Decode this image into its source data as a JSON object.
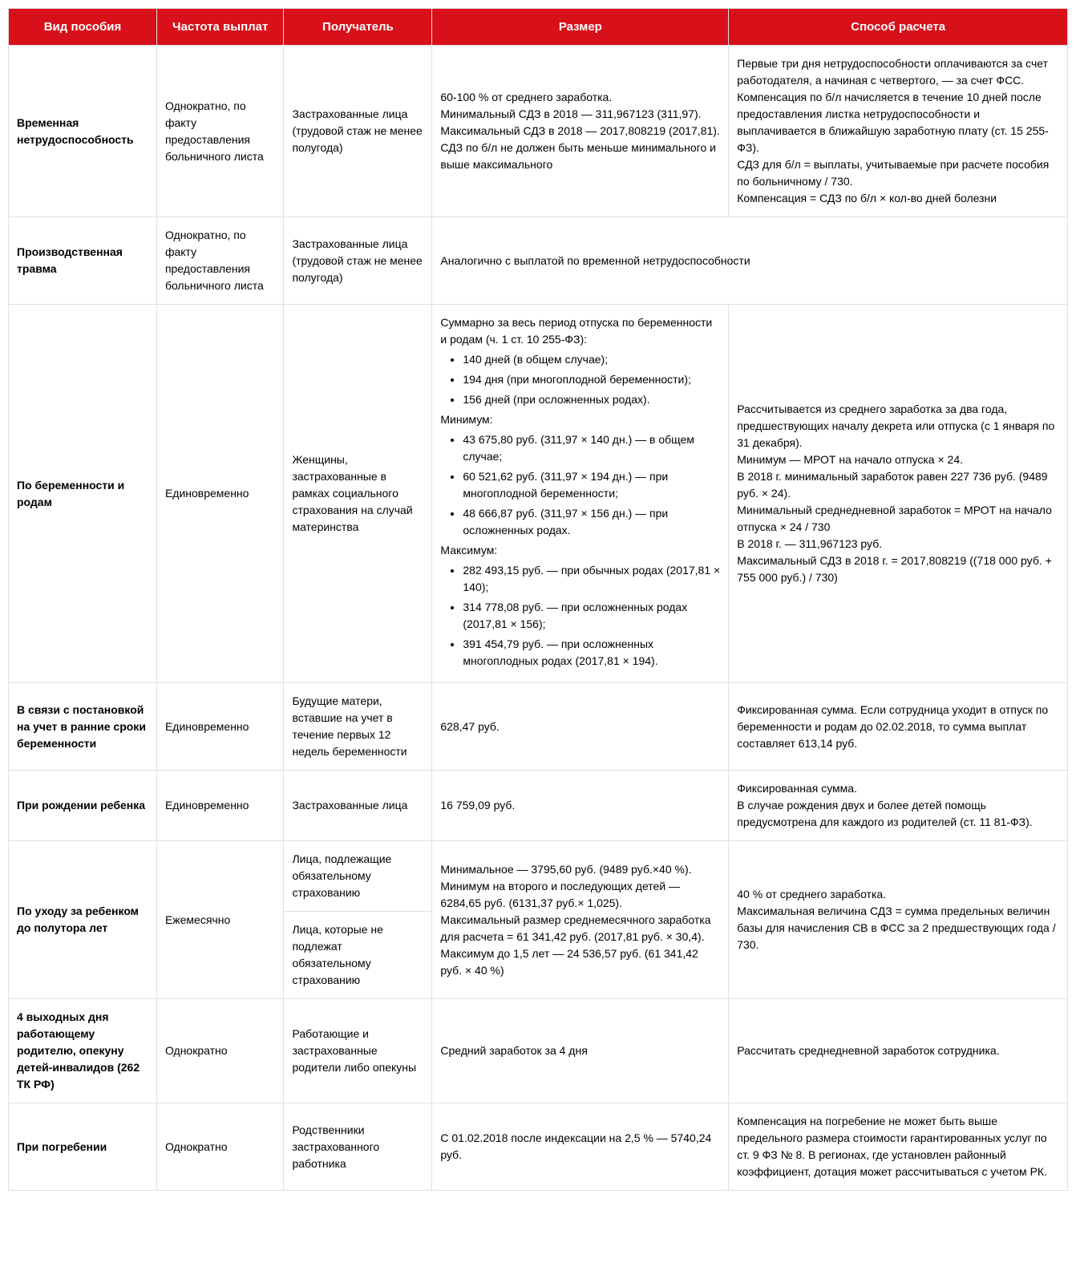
{
  "headers": [
    "Вид пособия",
    "Частота выплат",
    "Получатель",
    "Размер",
    "Способ расчета"
  ],
  "row1": {
    "type": "Временная нетрудоспособность",
    "freq": "Однократно, по факту предоставления больничного листа",
    "recip": "Застрахованные лица (трудовой стаж не менее полугода)",
    "size_l1": "60-100 % от среднего заработка.",
    "size_l2": "Минимальный СДЗ в 2018 — 311,967123 (311,97).",
    "size_l3": "Максимальный СДЗ в 2018 — 2017,808219 (2017,81).",
    "size_l4": "СДЗ по б/л не должен быть меньше минимального и выше максимального",
    "calc_l1": "Первые три дня нетрудоспособности оплачиваются за счет работодателя, а начиная с четвертого, — за счет ФСС.",
    "calc_l2": "Компенсация по б/л начисляется в течение 10 дней после предоставления листка нетрудоспособности и выплачивается в ближайшую заработную плату (ст. 15 255-ФЗ).",
    "calc_l3": "СДЗ для б/л = выплаты, учитываемые при расчете пособия по больничному / 730.",
    "calc_l4": "Компенсация = СДЗ по б/л × кол-во дней болезни"
  },
  "row2": {
    "type": "Производственная травма",
    "freq": "Однократно, по факту предоставления больничного листа",
    "recip": "Застрахованные лица (трудовой стаж не менее полугода)",
    "size": "Аналогично с выплатой по временной нетрудоспособности"
  },
  "row3": {
    "type": "По беременности и родам",
    "freq": "Единовременно",
    "recip": "Женщины, застрахованные в рамках социального страхования на случай материнства",
    "size_l1": "Суммарно за весь период отпуска по беременности и родам (ч. 1 ст. 10 255-ФЗ):",
    "size_b1": "140 дней (в общем случае);",
    "size_b2": "194 дня (при многоплодной беременности);",
    "size_b3": "156 дней (при осложненных родах).",
    "size_l2": "Минимум:",
    "size_b4": "43 675,80 руб. (311,97 × 140 дн.) — в общем случае;",
    "size_b5": "60 521,62 руб. (311,97 × 194 дн.) — при многоплодной беременности;",
    "size_b6": "48 666,87 руб. (311,97 × 156 дн.) — при осложненных родах.",
    "size_l3": "Максимум:",
    "size_b7": "282 493,15 руб. — при обычных родах (2017,81 × 140);",
    "size_b8": "314 778,08 руб. — при осложненных родах (2017,81 × 156);",
    "size_b9": "391 454,79 руб. — при осложненных многоплодных родах (2017,81 × 194).",
    "calc_l1": "Рассчитывается из среднего заработка за два года, предшествующих началу декрета или отпуска (с 1 января по 31 декабря).",
    "calc_l2": "Минимум — МРОТ на начало отпуска × 24.",
    "calc_l3": "В 2018 г. минимальный заработок равен 227 736 руб. (9489 руб. × 24).",
    "calc_l4": "Минимальный среднедневной заработок = МРОТ на начало отпуска × 24 / 730",
    "calc_l5": "В 2018 г. — 311,967123 руб.",
    "calc_l6": "Максимальный СДЗ в 2018 г. = 2017,808219 ((718 000 руб. + 755 000 руб.) / 730)"
  },
  "row4": {
    "type": "В связи с постановкой на учет в ранние сроки беременности",
    "freq": "Единовременно",
    "recip": "Будущие матери, вставшие на учет в течение первых 12 недель беременности",
    "size": "628,47 руб.",
    "calc": "Фиксированная сумма. Если сотрудница уходит в отпуск по беременности и родам до 02.02.2018, то сумма выплат составляет 613,14 руб."
  },
  "row5": {
    "type": "При рождении ребенка",
    "freq": "Единовременно",
    "recip": "Застрахованные лица",
    "size": "16 759,09 руб.",
    "calc_l1": "Фиксированная сумма.",
    "calc_l2": "В случае рождения двух и более детей помощь предусмотрена для каждого из родителей (ст. 11 81-ФЗ)."
  },
  "row6": {
    "type": "По уходу за ребенком до полутора лет",
    "freq": "Ежемесячно",
    "recip_a": "Лица, подлежащие обязательному страхованию",
    "recip_b": "Лица, которые не подлежат обязательному страхованию",
    "size_l1": "Минимальное — 3795,60 руб. (9489 руб.×40 %).",
    "size_l2": "Минимум на второго и последующих детей — 6284,65 руб. (6131,37 руб.× 1,025).",
    "size_l3": "Максимальный размер среднемесячного заработка для расчета = 61 341,42 руб. (2017,81 руб. × 30,4).",
    "size_l4": "Максимум до 1,5 лет — 24 536,57 руб. (61 341,42 руб. × 40 %)",
    "calc_l1": "40 % от среднего заработка.",
    "calc_l2": "Максимальная величина СДЗ = сумма предельных величин базы для начисления СВ в ФСС за 2 предшествующих года / 730."
  },
  "row7": {
    "type": "4 выходных дня работающему родителю, опекуну детей-инвалидов (262 ТК РФ)",
    "freq": "Однократно",
    "recip": "Работающие и застрахованные родители либо опекуны",
    "size": "Средний заработок за 4 дня",
    "calc": "Рассчитать среднедневной заработок сотрудника."
  },
  "row8": {
    "type": "При погребении",
    "freq": "Однократно",
    "recip": "Родственники застрахованного работника",
    "size": "С 01.02.2018 после индексации на 2,5 % — 5740,24 руб.",
    "calc": "Компенсация на погребение не может быть выше предельного размера стоимости гарантированных услуг по ст. 9 ФЗ № 8. В регионах, где установлен районный коэффициент, дотация может рассчитываться с учетом РК."
  }
}
